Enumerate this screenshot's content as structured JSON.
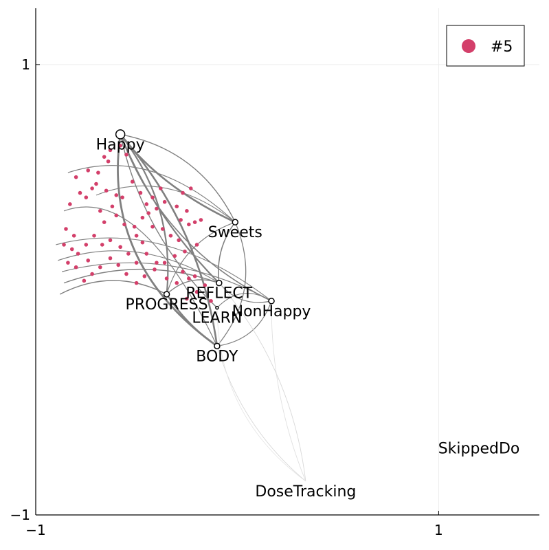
{
  "chart_data": {
    "type": "scatter",
    "xlim": [
      -1,
      1.5
    ],
    "ylim": [
      -1,
      1.25
    ],
    "x_ticks": [
      {
        "value": -1,
        "label": "−1"
      },
      {
        "value": 1,
        "label": "1"
      }
    ],
    "y_ticks": [
      {
        "value": -1,
        "label": "−1"
      },
      {
        "value": 1,
        "label": "1"
      }
    ],
    "grid": true,
    "legend": {
      "position": "top-right",
      "entries": [
        {
          "label": "#5",
          "color": "#d33f6a"
        }
      ]
    },
    "nodes": [
      {
        "name": "Happy",
        "x": -0.58,
        "y": 0.69,
        "size": "large"
      },
      {
        "name": "Sweets",
        "x": -0.01,
        "y": 0.3,
        "size": "small"
      },
      {
        "name": "REFLECT",
        "x": -0.09,
        "y": 0.03,
        "size": "small"
      },
      {
        "name": "NonHappy",
        "x": 0.17,
        "y": -0.05,
        "size": "small"
      },
      {
        "name": "PROGRESS",
        "x": -0.35,
        "y": -0.02,
        "size": "small"
      },
      {
        "name": "LEARN",
        "x": -0.1,
        "y": -0.08,
        "size": "tiny"
      },
      {
        "name": "BODY",
        "x": -0.1,
        "y": -0.25,
        "size": "small"
      },
      {
        "name": "DoseTracking",
        "x": 0.34,
        "y": -0.85,
        "size": "none"
      },
      {
        "name": "SkippedDo",
        "x": 1.2,
        "y": -0.66,
        "size": "none"
      }
    ],
    "series": [
      {
        "name": "#5",
        "color": "#d33f6a",
        "points": [
          [
            -0.8,
            0.5
          ],
          [
            -0.74,
            0.53
          ],
          [
            -0.72,
            0.45
          ],
          [
            -0.7,
            0.47
          ],
          [
            -0.65,
            0.44
          ],
          [
            -0.6,
            0.42
          ],
          [
            -0.57,
            0.41
          ],
          [
            -0.62,
            0.37
          ],
          [
            -0.68,
            0.35
          ],
          [
            -0.66,
            0.3
          ],
          [
            -0.6,
            0.33
          ],
          [
            -0.56,
            0.29
          ],
          [
            -0.51,
            0.28
          ],
          [
            -0.47,
            0.32
          ],
          [
            -0.44,
            0.34
          ],
          [
            -0.4,
            0.36
          ],
          [
            -0.42,
            0.28
          ],
          [
            -0.37,
            0.27
          ],
          [
            -0.33,
            0.24
          ],
          [
            -0.29,
            0.22
          ],
          [
            -0.24,
            0.29
          ],
          [
            -0.21,
            0.3
          ],
          [
            -0.18,
            0.31
          ],
          [
            -0.2,
            0.2
          ],
          [
            -0.26,
            0.17
          ],
          [
            -0.31,
            0.15
          ],
          [
            -0.36,
            0.12
          ],
          [
            -0.41,
            0.09
          ],
          [
            -0.46,
            0.06
          ],
          [
            -0.5,
            0.03
          ],
          [
            -0.55,
            0.07
          ],
          [
            -0.59,
            0.11
          ],
          [
            -0.63,
            0.14
          ],
          [
            -0.68,
            0.1
          ],
          [
            -0.72,
            0.07
          ],
          [
            -0.76,
            0.04
          ],
          [
            -0.8,
            0.1
          ],
          [
            -0.84,
            0.12
          ],
          [
            -0.79,
            0.16
          ],
          [
            -0.75,
            0.2
          ],
          [
            -0.71,
            0.24
          ],
          [
            -0.67,
            0.2
          ],
          [
            -0.63,
            0.22
          ],
          [
            -0.58,
            0.19
          ],
          [
            -0.54,
            0.16
          ],
          [
            -0.5,
            0.12
          ],
          [
            -0.45,
            0.16
          ],
          [
            -0.4,
            0.12
          ],
          [
            -0.35,
            0.05
          ],
          [
            -0.3,
            0.03
          ],
          [
            -0.27,
            0.08
          ],
          [
            -0.24,
            0.05
          ],
          [
            -0.21,
            0.06
          ],
          [
            -0.16,
            0.02
          ],
          [
            -0.13,
            -0.05
          ],
          [
            -0.2,
            -0.01
          ],
          [
            -0.25,
            -0.04
          ],
          [
            -0.83,
            0.38
          ],
          [
            -0.78,
            0.43
          ],
          [
            -0.75,
            0.41
          ],
          [
            -0.69,
            0.52
          ],
          [
            -0.66,
            0.59
          ],
          [
            -0.64,
            0.57
          ],
          [
            -0.63,
            0.62
          ],
          [
            -0.58,
            0.64
          ],
          [
            -0.55,
            0.6
          ],
          [
            -0.52,
            0.48
          ],
          [
            -0.48,
            0.43
          ],
          [
            -0.45,
            0.38
          ],
          [
            -0.42,
            0.41
          ],
          [
            -0.38,
            0.45
          ],
          [
            -0.36,
            0.39
          ],
          [
            -0.3,
            0.37
          ],
          [
            -0.27,
            0.43
          ],
          [
            -0.25,
            0.35
          ],
          [
            -0.23,
            0.45
          ],
          [
            -0.28,
            0.31
          ],
          [
            -0.5,
            0.24
          ],
          [
            -0.47,
            0.21
          ],
          [
            -0.85,
            0.27
          ],
          [
            -0.81,
            0.24
          ],
          [
            -0.82,
            0.18
          ],
          [
            -0.86,
            0.2
          ],
          [
            -0.74,
            0.13
          ]
        ]
      }
    ]
  }
}
